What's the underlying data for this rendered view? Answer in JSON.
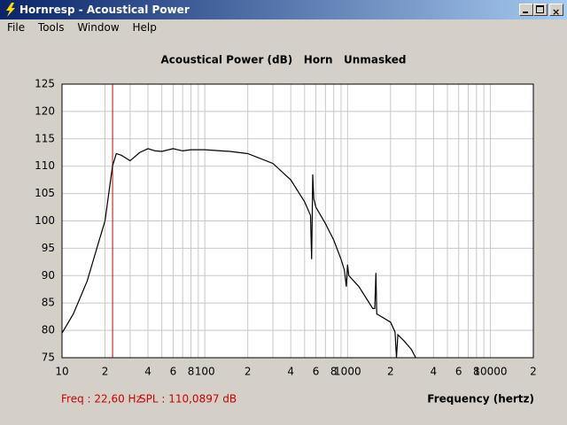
{
  "window": {
    "title": "Hornresp - Acoustical Power",
    "menu": [
      "File",
      "Tools",
      "Window",
      "Help"
    ]
  },
  "chart_data": {
    "type": "line",
    "title": "Acoustical Power (dB)   Horn   Unmasked",
    "x_label": "Frequency (hertz)",
    "x": [
      10,
      12,
      15,
      18,
      20,
      22.6,
      24,
      26,
      30,
      35,
      40,
      45,
      50,
      60,
      70,
      80,
      100,
      150,
      200,
      300,
      400,
      500,
      550,
      560,
      565,
      570,
      580,
      600,
      700,
      800,
      900,
      950,
      980,
      1000,
      1020,
      1200,
      1500,
      1550,
      1580,
      1600,
      2000,
      2150,
      2200,
      2250,
      2500,
      2800,
      3000
    ],
    "values": [
      79.5,
      83,
      89,
      96,
      100,
      110.09,
      112.3,
      112,
      111,
      112.5,
      113.2,
      112.8,
      112.7,
      113.2,
      112.8,
      113,
      113,
      112.7,
      112.3,
      110.5,
      107.5,
      103.5,
      101,
      93,
      100,
      108.5,
      104,
      102.5,
      99.5,
      96.5,
      93,
      91,
      88,
      92,
      90,
      88,
      84,
      84,
      90.5,
      83,
      81.5,
      79.7,
      75,
      79.2,
      78,
      76.5,
      75
    ],
    "color": "#000000",
    "log_x": true,
    "grid": true,
    "xlim": [
      10,
      20000
    ],
    "ylim": [
      75,
      125
    ],
    "xticks": [
      10,
      {
        "value": 20,
        "label": "2"
      },
      {
        "value": 40,
        "label": "4"
      },
      {
        "value": 60,
        "label": "6"
      },
      {
        "value": 80,
        "label": "8"
      },
      100,
      {
        "value": 200,
        "label": "2"
      },
      {
        "value": 400,
        "label": "4"
      },
      {
        "value": 600,
        "label": "6"
      },
      {
        "value": 800,
        "label": "8"
      },
      {
        "value": 1000,
        "label": "1000"
      },
      {
        "value": 2000,
        "label": "2"
      },
      {
        "value": 4000,
        "label": "4"
      },
      {
        "value": 6000,
        "label": "6"
      },
      {
        "value": 8000,
        "label": "8"
      },
      10000,
      {
        "value": 20000,
        "label": "2"
      }
    ],
    "xminor": [
      30,
      50,
      70,
      90,
      300,
      500,
      700,
      900,
      3000,
      5000,
      7000,
      9000
    ],
    "yticks": [
      75,
      80,
      85,
      90,
      95,
      100,
      105,
      110,
      115,
      120,
      125
    ],
    "marker_x": 22.6,
    "marker_color": "#cc0000",
    "status": {
      "freq": "Freq : 22,60 Hz",
      "spl": "SPL : 110,0897 dB"
    }
  }
}
